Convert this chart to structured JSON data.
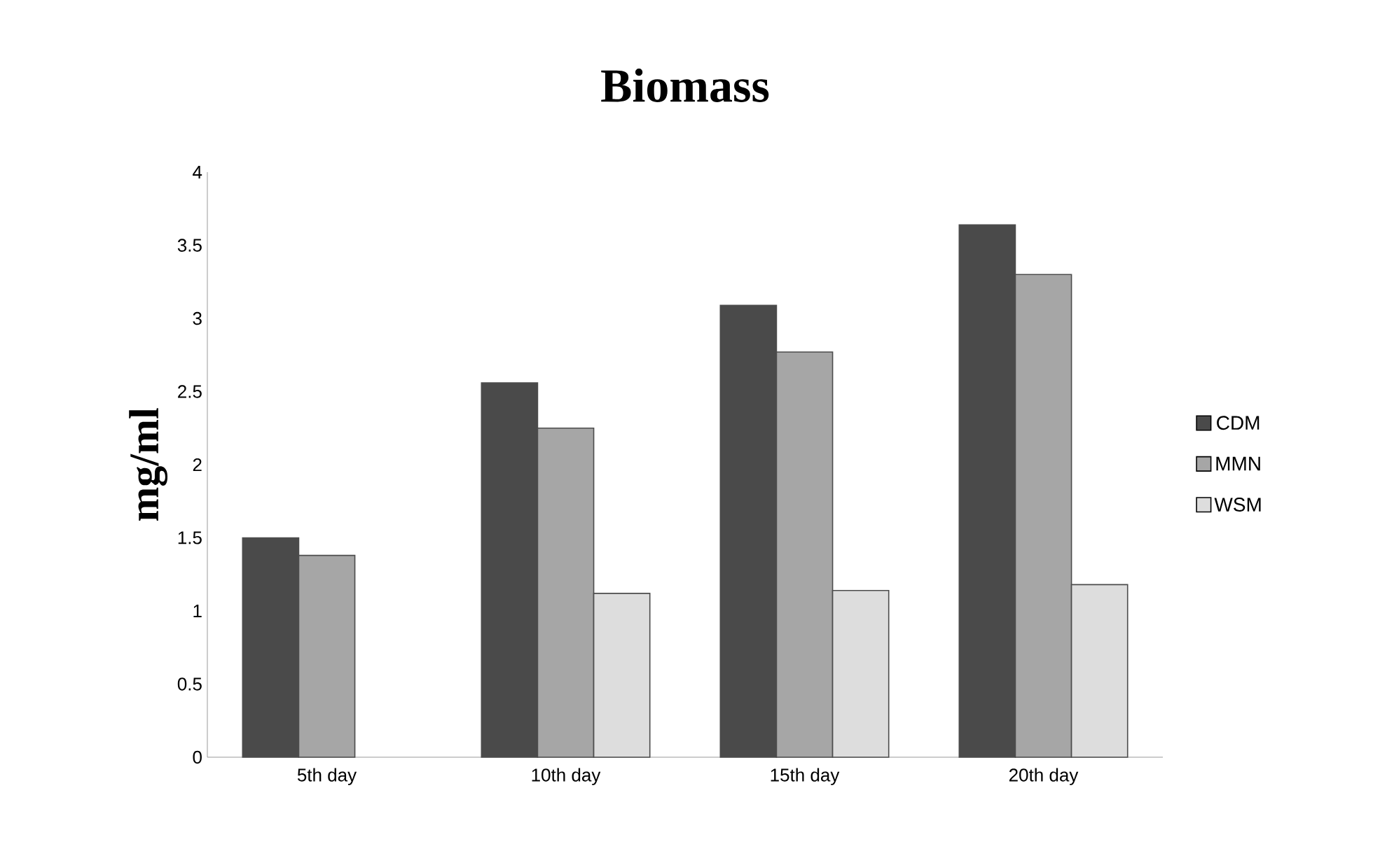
{
  "chart_data": {
    "type": "bar",
    "title": "Biomass",
    "ylabel": "mg/ml",
    "categories": [
      "5th day",
      "10th day",
      "15th day",
      "20th day"
    ],
    "series": [
      {
        "name": "CDM",
        "color": "#4a4a4a",
        "values": [
          1.5,
          2.56,
          3.09,
          3.64
        ]
      },
      {
        "name": "MMN",
        "color": "#a6a6a6",
        "values": [
          1.38,
          2.25,
          2.77,
          3.3
        ]
      },
      {
        "name": "WSM",
        "color": "#dddddd",
        "values": [
          null,
          1.12,
          1.14,
          1.18
        ]
      }
    ],
    "ylim": [
      0,
      4
    ],
    "yticks": [
      0,
      0.5,
      1,
      1.5,
      2,
      2.5,
      3,
      3.5,
      4
    ],
    "grid": false,
    "legend": "right"
  }
}
